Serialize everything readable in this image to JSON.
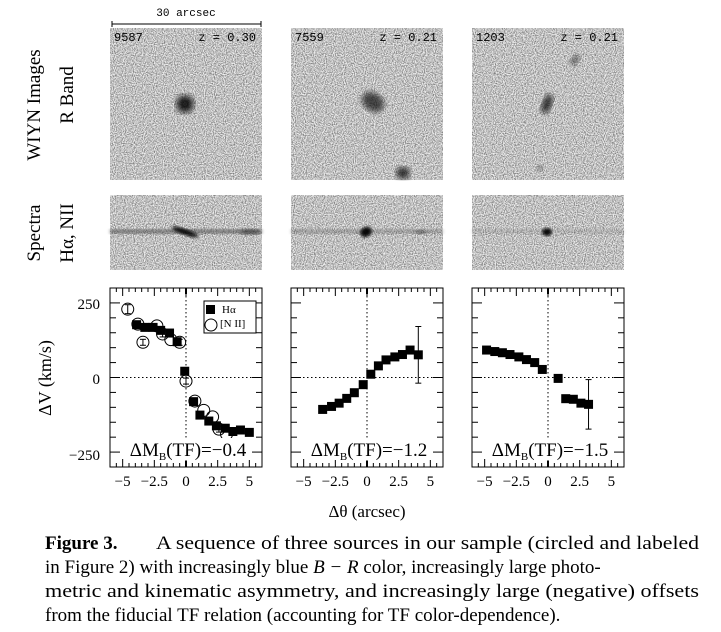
{
  "scale_bar": {
    "label": "30 arcsec"
  },
  "row_labels": {
    "images_line1": "WIYN Images",
    "images_line2": "R Band",
    "spectra_line1": "Spectra",
    "spectra_line2": "Hα, NII"
  },
  "panels": [
    {
      "id": "9587",
      "z_label": "z = 0.30",
      "tf_label": "ΔM",
      "tf_sub": "B",
      "tf_value": "(TF)=−0.4"
    },
    {
      "id": "7559",
      "z_label": "z = 0.21",
      "tf_label": "ΔM",
      "tf_sub": "B",
      "tf_value": "(TF)=−1.2"
    },
    {
      "id": "1203",
      "z_label": "z = 0.21",
      "tf_label": "ΔM",
      "tf_sub": "B",
      "tf_value": "(TF)=−1.5"
    }
  ],
  "legend": {
    "halpha": "Hα",
    "nii": "[N II]"
  },
  "axes": {
    "ylabel": "ΔV (km/s)",
    "xlabel": "Δθ (arcsec)",
    "yticks": [
      "250",
      "0",
      "−250"
    ],
    "xticks": [
      "−5",
      "−2.5",
      "0",
      "2.5",
      "5"
    ]
  },
  "chart_data": [
    {
      "type": "scatter",
      "title": "9587",
      "xlabel": "Δθ (arcsec)",
      "ylabel": "ΔV (km/s)",
      "xlim": [
        -6,
        6
      ],
      "ylim": [
        -300,
        300
      ],
      "series": [
        {
          "name": "Hα",
          "marker": "filled-square",
          "x": [
            -3.9,
            -3.25,
            -2.6,
            -2.0,
            -1.3,
            -0.7,
            -0.1,
            0.6,
            1.1,
            1.8,
            2.4,
            3.1,
            3.7,
            4.3,
            5.0
          ],
          "y": [
            177,
            168,
            168,
            158,
            149,
            120,
            21,
            -81,
            -126,
            -146,
            -162,
            -170,
            -181,
            -176,
            -184
          ],
          "err": [
            0,
            0,
            0,
            0,
            0,
            0,
            0,
            0,
            0,
            0,
            0,
            0,
            0,
            0,
            10
          ]
        },
        {
          "name": "[N II]",
          "marker": "open-circle",
          "x": [
            -4.6,
            -3.8,
            -3.4,
            -2.3,
            -1.85,
            -1.2,
            -0.5,
            0.0,
            0.7,
            1.4,
            2.1,
            2.6,
            3.2
          ],
          "y": [
            229,
            179,
            118,
            173,
            146,
            127,
            118,
            -12,
            -79,
            -110,
            -132,
            -173,
            -190
          ],
          "err": [
            15,
            0,
            10,
            0,
            10,
            0,
            10,
            10,
            0,
            0,
            0,
            10,
            0
          ]
        }
      ]
    },
    {
      "type": "scatter",
      "title": "7559",
      "xlabel": "Δθ (arcsec)",
      "ylabel": "ΔV (km/s)",
      "xlim": [
        -6,
        6
      ],
      "ylim": [
        -300,
        300
      ],
      "series": [
        {
          "name": "Hα",
          "marker": "filled-square",
          "x": [
            -3.5,
            -2.8,
            -2.2,
            -1.6,
            -1.0,
            -0.3,
            0.3,
            0.9,
            1.5,
            2.2,
            2.8,
            3.4,
            4.05
          ],
          "y": [
            -107,
            -97,
            -86,
            -70,
            -51,
            -24,
            11,
            39,
            59,
            69,
            77,
            92,
            76
          ],
          "err": [
            0,
            0,
            0,
            0,
            0,
            0,
            0,
            0,
            0,
            0,
            0,
            12,
            95
          ]
        }
      ]
    },
    {
      "type": "scatter",
      "title": "1203",
      "xlabel": "Δθ (arcsec)",
      "ylabel": "ΔV (km/s)",
      "xlim": [
        -6,
        6
      ],
      "ylim": [
        -300,
        300
      ],
      "series": [
        {
          "name": "Hα",
          "marker": "filled-square",
          "x": [
            -4.85,
            -4.2,
            -3.6,
            -3.0,
            -2.3,
            -1.7,
            -1.05,
            -0.45,
            0.8,
            1.4,
            2.0,
            2.6,
            3.2
          ],
          "y": [
            92,
            87,
            83,
            77,
            69,
            60,
            50,
            27,
            -3,
            -71,
            -73,
            -86,
            -90
          ],
          "err": [
            0,
            0,
            0,
            0,
            0,
            0,
            0,
            0,
            0,
            0,
            0,
            10,
            83
          ]
        }
      ]
    }
  ],
  "caption": {
    "label": "Figure 3.",
    "line1": "A sequence of three sources in our sample (circled and labeled",
    "line2a": "in Figure 2) with increasingly blue ",
    "line2b": "B − R",
    "line2c": " color, increasingly large photo-",
    "line3": "metric and kinematic asymmetry, and increasingly large (negative) offsets",
    "line4": "from the fiducial TF relation (accounting for TF color-dependence)."
  }
}
